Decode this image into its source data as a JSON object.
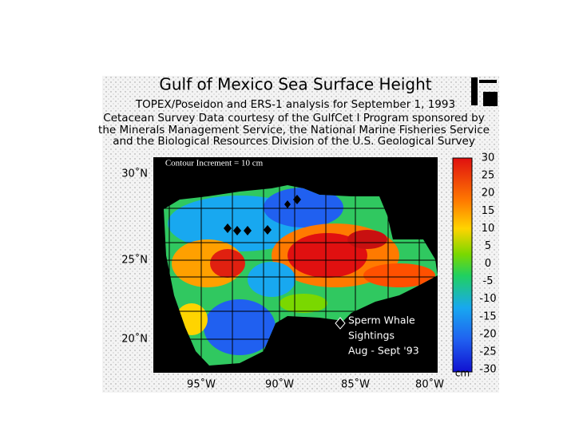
{
  "title": "Gulf of Mexico Sea Surface Height",
  "subtitle_lines": [
    "TOPEX/Poseidon and ERS-1 analysis for September 1, 1993",
    "Cetacean Survey Data courtesy of the GulfCet I Program sponsored by",
    "the Minerals Management Service, the National Marine Fisheries Service",
    "and the Biological Resources Division of the U.S. Geological Survey"
  ],
  "annotation": "Contour Increment = 10 cm",
  "lat_labels": [
    "30˚N",
    "25˚N",
    "20˚N"
  ],
  "lon_labels": [
    "95˚W",
    "90˚W",
    "85˚W",
    "80˚W"
  ],
  "colorbar": {
    "ticks": [
      30,
      25,
      20,
      15,
      10,
      5,
      0,
      -5,
      -10,
      -15,
      -20,
      -25,
      -30
    ],
    "unit": "cm"
  },
  "legend": [
    "Sperm Whale",
    "Sightings",
    "Aug - Sept '93"
  ]
}
